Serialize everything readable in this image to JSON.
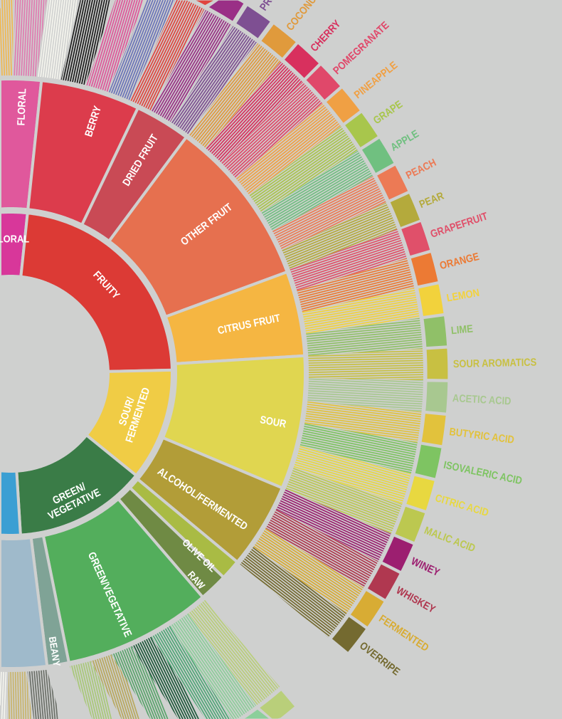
{
  "diagram": {
    "background": "#cfd0cf",
    "gap_color": "#cfd0cf",
    "inner_ring": [
      {
        "id": "floral",
        "label_lines": [
          "FLORAL"
        ],
        "color": "#d8379a"
      },
      {
        "id": "fruity",
        "label_lines": [
          "FRUITY"
        ],
        "color": "#dc3a35"
      },
      {
        "id": "sour_fermented",
        "label_lines": [
          "SOUR/",
          "FERMENTED"
        ],
        "color": "#f0cc45"
      },
      {
        "id": "green_vegetative",
        "label_lines": [
          "GREEN/",
          "VEGETATIVE"
        ],
        "color": "#3a7c47"
      },
      {
        "id": "other",
        "label_lines": [],
        "color": "#3b9fd3"
      }
    ],
    "middle_ring": [
      {
        "id": "floral2",
        "parent": "floral",
        "label": "FLORAL",
        "color": "#e0589c"
      },
      {
        "id": "berry",
        "parent": "fruity",
        "label": "BERRY",
        "color": "#dc3c4c"
      },
      {
        "id": "dried_fruit",
        "parent": "fruity",
        "label": "DRIED FRUIT",
        "color": "#c94a55"
      },
      {
        "id": "other_fruit",
        "parent": "fruity",
        "label": "OTHER FRUIT",
        "color": "#e6704f"
      },
      {
        "id": "citrus_fruit",
        "parent": "fruity",
        "label": "CITRUS FRUIT",
        "color": "#f5b642"
      },
      {
        "id": "sour",
        "parent": "sour_fermented",
        "label": "SOUR",
        "color": "#e0d650"
      },
      {
        "id": "alcohol_fermented",
        "parent": "sour_fermented",
        "label": "ALCOHOL/FERMENTED",
        "color": "#b29d38"
      },
      {
        "id": "olive_oil",
        "parent": "green_vegetative",
        "label": "OLIVE OIL",
        "color": "#a9bb44"
      },
      {
        "id": "raw",
        "parent": "green_vegetative",
        "label": "RAW",
        "color": "#6f8a44"
      },
      {
        "id": "green_vegetative2",
        "parent": "green_vegetative",
        "label": "GREEN/VEGETATIVE",
        "color": "#53ae5c"
      },
      {
        "id": "beany",
        "parent": "green_vegetative",
        "label": "BEANY",
        "color": "#7fa396"
      },
      {
        "id": "papery_musty",
        "parent": "other",
        "label": "",
        "color": "#9fbacb"
      }
    ],
    "outer_ring": [
      {
        "id": "chamomile",
        "parent": "floral2",
        "color": "#f0b850"
      },
      {
        "id": "rose",
        "parent": "floral2",
        "color": "#e07ab0"
      },
      {
        "id": "jasmine",
        "parent": "floral2",
        "color": "#f5f5ee"
      },
      {
        "id": "blackberry",
        "parent": "berry",
        "color": "#1c1c1c"
      },
      {
        "id": "raspberry",
        "parent": "berry",
        "color": "#e0559a"
      },
      {
        "id": "blueberry",
        "parent": "berry",
        "color": "#6a72b8"
      },
      {
        "id": "strawberry",
        "parent": "berry",
        "color": "#e0443e"
      },
      {
        "id": "raisin",
        "parent": "dried_fruit",
        "color": "#9a2f86"
      },
      {
        "id": "prune",
        "parent": "dried_fruit",
        "label": "PRUNE",
        "color": "#7e4f92"
      },
      {
        "id": "coconut",
        "parent": "other_fruit",
        "label": "COCONUT",
        "color": "#e09a3c"
      },
      {
        "id": "cherry",
        "parent": "other_fruit",
        "label": "CHERRY",
        "color": "#d8305e"
      },
      {
        "id": "pomegranate",
        "parent": "other_fruit",
        "label": "POMEGRANATE",
        "color": "#e0486a"
      },
      {
        "id": "pineapple",
        "parent": "other_fruit",
        "label": "PINEAPPLE",
        "color": "#f0a044"
      },
      {
        "id": "grape",
        "parent": "other_fruit",
        "label": "GRAPE",
        "color": "#a8c64c"
      },
      {
        "id": "apple",
        "parent": "other_fruit",
        "label": "APPLE",
        "color": "#70c080"
      },
      {
        "id": "peach",
        "parent": "other_fruit",
        "label": "PEACH",
        "color": "#ec7a55"
      },
      {
        "id": "pear",
        "parent": "other_fruit",
        "label": "PEAR",
        "color": "#b4aa3c"
      },
      {
        "id": "grapefruit",
        "parent": "citrus_fruit",
        "label": "GRAPEFRUIT",
        "color": "#e0506a"
      },
      {
        "id": "orange",
        "parent": "citrus_fruit",
        "label": "ORANGE",
        "color": "#ec7a34"
      },
      {
        "id": "lemon",
        "parent": "citrus_fruit",
        "label": "LEMON",
        "color": "#f2d23c"
      },
      {
        "id": "lime",
        "parent": "citrus_fruit",
        "label": "LIME",
        "color": "#90c068"
      },
      {
        "id": "sour_aromatics",
        "parent": "sour",
        "label": "SOUR AROMATICS",
        "color": "#c8c042"
      },
      {
        "id": "acetic_acid",
        "parent": "sour",
        "label": "ACETIC ACID",
        "color": "#a8c890"
      },
      {
        "id": "butyric_acid",
        "parent": "sour",
        "label": "BUTYRIC ACID",
        "color": "#e2c23c"
      },
      {
        "id": "isovaleric_acid",
        "parent": "sour",
        "label": "ISOVALERIC ACID",
        "color": "#7ec462"
      },
      {
        "id": "citric_acid",
        "parent": "sour",
        "label": "CITRIC ACID",
        "color": "#e8d840"
      },
      {
        "id": "malic_acid",
        "parent": "sour",
        "label": "MALIC ACID",
        "color": "#bcc850"
      },
      {
        "id": "winey",
        "parent": "alcohol_fermented",
        "label": "WINEY",
        "color": "#9c1f70"
      },
      {
        "id": "whiskey",
        "parent": "alcohol_fermented",
        "label": "WHISKEY",
        "color": "#b03850"
      },
      {
        "id": "fermented",
        "parent": "alcohol_fermented",
        "label": "FERMENTED",
        "color": "#d8ac34"
      },
      {
        "id": "overripe",
        "parent": "alcohol_fermented",
        "label": "OVERRIPE",
        "color": "#746a30"
      },
      {
        "id": "gv_leaf_1",
        "parent": "green_vegetative2",
        "color": "#b9cf7a"
      },
      {
        "id": "gv_leaf_2",
        "parent": "green_vegetative2",
        "color": "#8ccf9a"
      },
      {
        "id": "gv_leaf_3",
        "parent": "green_vegetative2",
        "color": "#4fa877"
      },
      {
        "id": "gv_leaf_4",
        "parent": "green_vegetative2",
        "color": "#1f5a3c"
      },
      {
        "id": "gv_leaf_5",
        "parent": "green_vegetative2",
        "color": "#5aa56c"
      },
      {
        "id": "gv_leaf_6",
        "parent": "green_vegetative2",
        "color": "#b8a85e"
      },
      {
        "id": "gv_leaf_7",
        "parent": "green_vegetative2",
        "color": "#a8c878"
      },
      {
        "id": "pm_leaf_1",
        "parent": "papery_musty",
        "color": "#6b6f68"
      },
      {
        "id": "pm_leaf_2",
        "parent": "papery_musty",
        "color": "#c9b46a"
      },
      {
        "id": "pm_leaf_3",
        "parent": "papery_musty",
        "color": "#f4f4ee"
      }
    ]
  }
}
